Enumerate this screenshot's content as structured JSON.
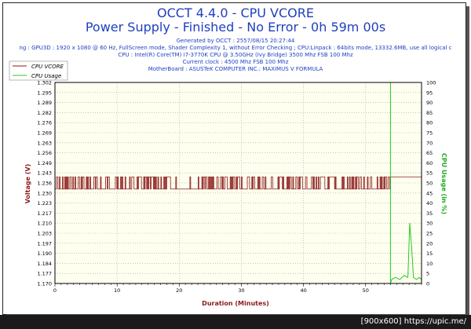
{
  "title": "OCCT 4.4.0 - CPU VCORE",
  "subtitle": "Power Supply - Finished - No Error - 0h 59m 00s",
  "info_lines": [
    "Generated by OCCT : 2557/08/15 20:27:44",
    "ng : GPU3D : 1920 x 1080 @ 60 Hz, FullScreen mode, Shader Complexity 1, without Error Checking ; CPU:Linpack : 64bits mode, 13332.6MB, use all logical c",
    "CPU : Intel(R) Core(TM) i7-3770K CPU @ 3.50GHz (Ivy Bridge) 3500 Mhz FSB 100 Mhz",
    "Current clock : 4500 Mhz FSB 100 Mhz",
    "MotherBoard : ASUSTeK COMPUTER INC.: MAXIMUS V FORMULA"
  ],
  "footer": "[900x600] https://upic.me/",
  "colors": {
    "vcore": "#8b1a1a",
    "usage": "#22cc22",
    "plot_bg": "#fffff0",
    "grid": "#a0a0a0"
  },
  "chart_data": {
    "type": "line",
    "xlabel": "Duration (Minutes)",
    "ylabel_left": "Voltage (V)",
    "ylabel_right": "CPU Usage (in %)",
    "xlim": [
      0,
      59
    ],
    "ylim_left": [
      1.17,
      1.302
    ],
    "ylim_right": [
      0,
      100
    ],
    "x_ticks": [
      0,
      10,
      20,
      30,
      40,
      50
    ],
    "y_left_ticks": [
      "1.170",
      "1.177",
      "1.184",
      "1.190",
      "1.197",
      "1.203",
      "1.210",
      "1.217",
      "1.223",
      "1.230",
      "1.236",
      "1.243",
      "1.249",
      "1.256",
      "1.263",
      "1.269",
      "1.276",
      "1.282",
      "1.289",
      "1.295",
      "1.302"
    ],
    "y_right_ticks": [
      0,
      5,
      10,
      15,
      20,
      25,
      30,
      35,
      40,
      45,
      50,
      55,
      60,
      65,
      70,
      75,
      80,
      85,
      90,
      95,
      100
    ],
    "grid": true,
    "legend": {
      "placement": "top-left",
      "entries": [
        "CPU VCORE",
        "CPU Usage"
      ]
    },
    "series": [
      {
        "name": "CPU VCORE",
        "axis": "left",
        "baseline": 1.232,
        "spike_high": 1.24,
        "stress_end": 54,
        "idle_value": 1.24,
        "idle_end": 59
      },
      {
        "name": "CPU Usage",
        "axis": "right",
        "stress_value": 100,
        "stress_end": 54,
        "idle_x": [
          54,
          54.2,
          54.8,
          55.5,
          56.2,
          56.8,
          57.1,
          57.4,
          57.7,
          58.2,
          58.6,
          59
        ],
        "idle_y": [
          0,
          2,
          3,
          2,
          4,
          3,
          30,
          18,
          3,
          2,
          3,
          2
        ]
      }
    ]
  }
}
